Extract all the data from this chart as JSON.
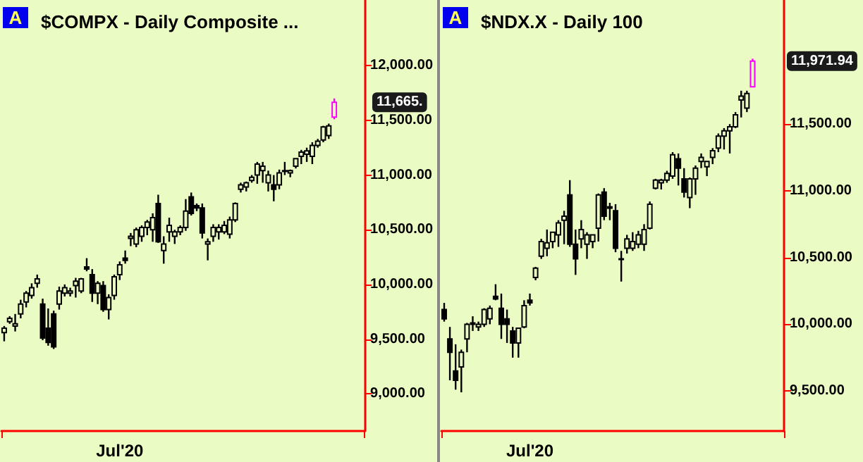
{
  "chart_data": [
    {
      "type": "candlestick",
      "title": "$COMPX - Daily Composite ...",
      "annotations": [
        "A",
        "11,665."
      ],
      "categories": [
        null,
        null,
        null,
        null,
        null,
        null,
        null,
        null,
        null,
        null,
        null,
        null,
        null,
        null,
        null,
        null,
        null,
        null,
        null,
        null,
        null,
        "Jul'20",
        null,
        null,
        null,
        null,
        null,
        null,
        null,
        null,
        null,
        null,
        null,
        null,
        null,
        null,
        null,
        null,
        null,
        null,
        null,
        null,
        null,
        null,
        null,
        null,
        null,
        null,
        null,
        null,
        null,
        null,
        null,
        null,
        null,
        null,
        null,
        null,
        null,
        null,
        null,
        null,
        null,
        null,
        null,
        null
      ],
      "ohlc": [
        [
          9560,
          9620,
          9480,
          9600
        ],
        [
          9660,
          9710,
          9640,
          9690
        ],
        [
          9620,
          9730,
          9570,
          9640
        ],
        [
          9730,
          9860,
          9690,
          9820
        ],
        [
          9840,
          9940,
          9790,
          9920
        ],
        [
          9900,
          10010,
          9870,
          9970
        ],
        [
          10010,
          10090,
          9970,
          10050
        ],
        [
          9820,
          9870,
          9490,
          9510
        ],
        [
          9600,
          9780,
          9440,
          9470
        ],
        [
          9730,
          9760,
          9410,
          9430
        ],
        [
          9820,
          9980,
          9770,
          9940
        ],
        [
          9920,
          10000,
          9890,
          9970
        ],
        [
          9920,
          9970,
          9890,
          9940
        ],
        [
          9990,
          10060,
          9880,
          10030
        ],
        [
          9940,
          10060,
          9920,
          10050
        ],
        [
          10160,
          10240,
          10120,
          10140
        ],
        [
          10090,
          10140,
          9840,
          9920
        ],
        [
          9920,
          10030,
          9820,
          10010
        ],
        [
          9990,
          10030,
          9750,
          9770
        ],
        [
          9770,
          9910,
          9680,
          9880
        ],
        [
          9900,
          10090,
          9860,
          10070
        ],
        [
          10090,
          10210,
          10040,
          10180
        ],
        [
          10240,
          10310,
          10190,
          10220
        ],
        [
          10420,
          10470,
          10350,
          10440
        ],
        [
          10370,
          10520,
          10340,
          10500
        ],
        [
          10440,
          10540,
          10390,
          10520
        ],
        [
          10520,
          10590,
          10450,
          10570
        ],
        [
          10500,
          10650,
          10390,
          10610
        ],
        [
          10740,
          10820,
          10380,
          10390
        ],
        [
          10310,
          10440,
          10190,
          10370
        ],
        [
          10480,
          10610,
          10390,
          10540
        ],
        [
          10440,
          10500,
          10370,
          10480
        ],
        [
          10480,
          10540,
          10450,
          10520
        ],
        [
          10520,
          10780,
          10490,
          10670
        ],
        [
          10800,
          10840,
          10630,
          10650
        ],
        [
          10720,
          10740,
          10670,
          10700
        ],
        [
          10700,
          10740,
          10420,
          10470
        ],
        [
          10370,
          10420,
          10220,
          10390
        ],
        [
          10440,
          10550,
          10390,
          10520
        ],
        [
          10480,
          10550,
          10410,
          10520
        ],
        [
          10480,
          10580,
          10460,
          10540
        ],
        [
          10460,
          10620,
          10420,
          10590
        ],
        [
          10590,
          10750,
          10570,
          10740
        ],
        [
          10870,
          10930,
          10840,
          10910
        ],
        [
          10890,
          10940,
          10850,
          10930
        ],
        [
          10950,
          11000,
          10930,
          10980
        ],
        [
          11000,
          11120,
          10920,
          11100
        ],
        [
          11040,
          11120,
          10930,
          11080
        ],
        [
          10930,
          11040,
          10850,
          11000
        ],
        [
          10910,
          11000,
          10760,
          10870
        ],
        [
          10910,
          11050,
          10870,
          11020
        ],
        [
          11040,
          11120,
          11000,
          11040
        ],
        [
          11020,
          11050,
          10980,
          11040
        ],
        [
          11080,
          11150,
          11060,
          11150
        ],
        [
          11170,
          11230,
          11100,
          11210
        ],
        [
          11190,
          11250,
          11120,
          11220
        ],
        [
          11170,
          11300,
          11100,
          11270
        ],
        [
          11270,
          11330,
          11250,
          11310
        ],
        [
          11320,
          11450,
          11300,
          11440
        ],
        [
          11360,
          11470,
          11330,
          11450
        ],
        [
          11530,
          11700,
          11510,
          11665
        ],
        null,
        null,
        null,
        null,
        null
      ],
      "colors": [
        "#000000",
        "#000000",
        "#000000",
        "#000000",
        "#000000",
        "#000000",
        "#000000",
        "#000000",
        "#000000",
        "#000000",
        "#000000",
        "#000000",
        "#000000",
        "#000000",
        "#000000",
        "#000000",
        "#000000",
        "#000000",
        "#000000",
        "#000000",
        "#000000",
        "#000000",
        "#000000",
        "#000000",
        "#000000",
        "#000000",
        "#000000",
        "#000000",
        "#000000",
        "#000000",
        "#000000",
        "#000000",
        "#000000",
        "#000000",
        "#000000",
        "#000000",
        "#000000",
        "#000000",
        "#000000",
        "#000000",
        "#000000",
        "#000000",
        "#000000",
        "#000000",
        "#000000",
        "#000000",
        "#000000",
        "#000000",
        "#000000",
        "#000000",
        "#000000",
        "#000000",
        "#000000",
        "#000000",
        "#000000",
        "#000000",
        "#000000",
        "#000000",
        "#000000",
        "#000000",
        "#ff00ff",
        null,
        null,
        null,
        null,
        null
      ],
      "ylim": [
        8660,
        12600
      ],
      "yticks": [
        {
          "value": 9000,
          "label": "9,000.00"
        },
        {
          "value": 9500,
          "label": "9,500.00"
        },
        {
          "value": 10000,
          "label": "10,000.00"
        },
        {
          "value": 10500,
          "label": "10,500.00"
        },
        {
          "value": 11000,
          "label": "11,000.00"
        },
        {
          "value": 11500,
          "label": "11,500.00"
        },
        {
          "value": 12000,
          "label": "12,000.00"
        }
      ]
    },
    {
      "type": "candlestick",
      "title": "$NDX.X - Daily 100",
      "annotations": [
        "A",
        "11,971.94"
      ],
      "categories": [
        null,
        null,
        null,
        null,
        null,
        null,
        null,
        null,
        null,
        null,
        null,
        null,
        null,
        null,
        null,
        "Jul'20",
        null,
        null,
        null,
        null,
        null,
        null,
        null,
        null,
        null,
        null,
        null,
        null,
        null,
        null,
        null,
        null,
        null,
        null,
        null,
        null,
        null,
        null,
        null,
        null,
        null,
        null,
        null,
        null,
        null,
        null,
        null,
        null,
        null,
        null,
        null,
        null,
        null,
        null,
        null,
        null,
        null,
        null,
        null,
        null
      ],
      "ohlc": [
        [
          10110,
          10160,
          10020,
          10040
        ],
        [
          9890,
          9980,
          9580,
          9790
        ],
        [
          9650,
          9850,
          9510,
          9580
        ],
        [
          9680,
          9810,
          9490,
          9790
        ],
        [
          9890,
          10010,
          9790,
          10000
        ],
        [
          10000,
          10060,
          9950,
          10010
        ],
        [
          9980,
          10020,
          9950,
          10000
        ],
        [
          10000,
          10120,
          9980,
          10110
        ],
        [
          10040,
          10140,
          10000,
          10120
        ],
        [
          10210,
          10300,
          10180,
          10190
        ],
        [
          10120,
          10230,
          9890,
          10000
        ],
        [
          10040,
          10110,
          9860,
          10000
        ],
        [
          9950,
          9980,
          9750,
          9860
        ],
        [
          9860,
          9970,
          9750,
          9970
        ],
        [
          9980,
          10180,
          9970,
          10140
        ],
        [
          10180,
          10230,
          10140,
          10160
        ],
        [
          10350,
          10430,
          10330,
          10420
        ],
        [
          10510,
          10640,
          10490,
          10620
        ],
        [
          10570,
          10710,
          10510,
          10610
        ],
        [
          10620,
          10690,
          10570,
          10690
        ],
        [
          10670,
          10780,
          10580,
          10760
        ],
        [
          10780,
          10850,
          10600,
          10810
        ],
        [
          10970,
          11080,
          10580,
          10600
        ],
        [
          10600,
          10710,
          10370,
          10490
        ],
        [
          10640,
          10780,
          10570,
          10710
        ],
        [
          10600,
          10690,
          10490,
          10670
        ],
        [
          10620,
          10670,
          10570,
          10670
        ],
        [
          10720,
          10980,
          10620,
          10970
        ],
        [
          10990,
          11020,
          10780,
          10810
        ],
        [
          10880,
          10910,
          10780,
          10870
        ],
        [
          10850,
          10900,
          10540,
          10570
        ],
        [
          10490,
          10550,
          10320,
          10490
        ],
        [
          10570,
          10670,
          10530,
          10640
        ],
        [
          10570,
          10690,
          10550,
          10620
        ],
        [
          10600,
          10700,
          10570,
          10670
        ],
        [
          10600,
          10750,
          10550,
          10710
        ],
        [
          10720,
          10920,
          10710,
          10900
        ],
        [
          11020,
          11090,
          11010,
          11080
        ],
        [
          11060,
          11090,
          11010,
          11080
        ],
        [
          11080,
          11150,
          11060,
          11130
        ],
        [
          11110,
          11290,
          11090,
          11270
        ],
        [
          11240,
          11280,
          11040,
          11170
        ],
        [
          11090,
          11170,
          10950,
          10990
        ],
        [
          10950,
          11100,
          10870,
          11090
        ],
        [
          11090,
          11190,
          10970,
          11170
        ],
        [
          11220,
          11280,
          11170,
          11250
        ],
        [
          11180,
          11220,
          11110,
          11220
        ],
        [
          11250,
          11320,
          11200,
          11300
        ],
        [
          11320,
          11430,
          11290,
          11410
        ],
        [
          11410,
          11470,
          11310,
          11450
        ],
        [
          11450,
          11500,
          11280,
          11480
        ],
        [
          11480,
          11590,
          11470,
          11570
        ],
        [
          11680,
          11750,
          11550,
          11710
        ],
        [
          11620,
          11750,
          11590,
          11730
        ],
        [
          11780,
          11990,
          11780,
          11971.94
        ],
        null,
        null,
        null,
        null,
        null
      ],
      "colors": [
        "#000000",
        "#000000",
        "#000000",
        "#000000",
        "#000000",
        "#000000",
        "#000000",
        "#000000",
        "#000000",
        "#000000",
        "#000000",
        "#000000",
        "#000000",
        "#000000",
        "#000000",
        "#000000",
        "#000000",
        "#000000",
        "#000000",
        "#000000",
        "#000000",
        "#000000",
        "#000000",
        "#000000",
        "#000000",
        "#000000",
        "#000000",
        "#000000",
        "#000000",
        "#000000",
        "#000000",
        "#000000",
        "#000000",
        "#000000",
        "#000000",
        "#000000",
        "#000000",
        "#000000",
        "#000000",
        "#000000",
        "#000000",
        "#000000",
        "#000000",
        "#000000",
        "#000000",
        "#000000",
        "#000000",
        "#000000",
        "#000000",
        "#000000",
        "#000000",
        "#000000",
        "#000000",
        "#000000",
        "#ff00ff",
        null,
        null,
        null,
        null,
        null
      ],
      "ylim": [
        9200,
        12430
      ],
      "yticks": [
        {
          "value": 9500,
          "label": "9,500.00"
        },
        {
          "value": 10000,
          "label": "10,000.00"
        },
        {
          "value": 10500,
          "label": "10,500.00"
        },
        {
          "value": 11000,
          "label": "11,000.00"
        },
        {
          "value": 11500,
          "label": "11,500.00"
        }
      ]
    }
  ]
}
